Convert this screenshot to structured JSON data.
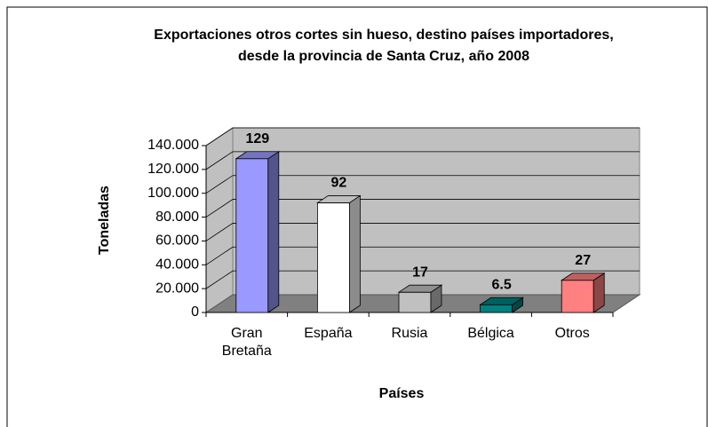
{
  "chart_data": {
    "type": "bar3d",
    "title": "Exportaciones otros cortes sin hueso, destino países importadores, desde la provincia de Santa Cruz, año 2008",
    "x_label": "Países",
    "y_label": "Toneladas",
    "categories": [
      "Gran Bretaña",
      "España",
      "Rusia",
      "Bélgica",
      "Otros"
    ],
    "values": [
      129,
      92,
      17,
      6.5,
      27
    ],
    "colors": [
      "#9999ff",
      "#ffffff",
      "#c0c0c0",
      "#008080",
      "#ff8080"
    ],
    "ylim": [
      0,
      140
    ],
    "yticks": [
      0,
      {
        "value": 20,
        "label": "20.000"
      },
      {
        "value": 40,
        "label": "40.000"
      },
      {
        "value": 60,
        "label": "60.000"
      },
      {
        "value": 80,
        "label": "80.000"
      },
      {
        "value": 100,
        "label": "100.000"
      },
      {
        "value": 120,
        "label": "120.000"
      },
      {
        "value": 140,
        "label": "140.000"
      }
    ],
    "grid": true
  }
}
